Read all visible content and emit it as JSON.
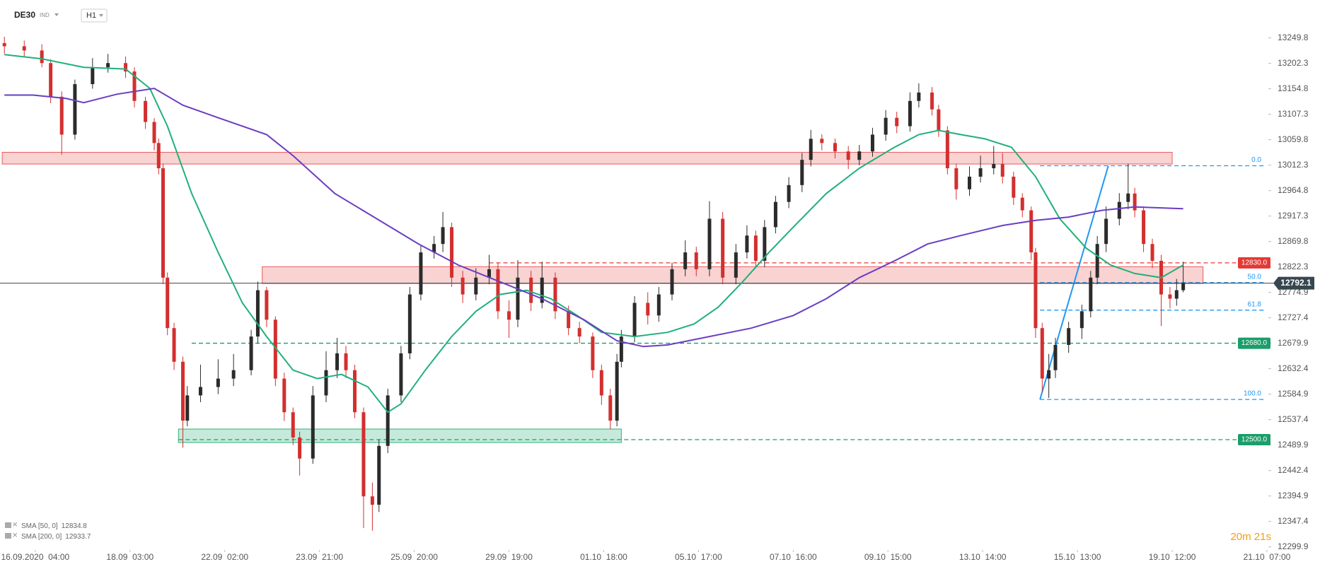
{
  "chart_data": {
    "type": "candlestick",
    "symbol": "DE30",
    "symbol_type": "IND",
    "timeframe": "H1",
    "countdown": "20m 21s",
    "up_color": "#2b2b2b",
    "down_color": "#d32f2f",
    "x": [
      2,
      11,
      19,
      23,
      28,
      34,
      42,
      49,
      57,
      61,
      66,
      70,
      72,
      74,
      76,
      79,
      83,
      85,
      91,
      99,
      106,
      114,
      117,
      121,
      125,
      129,
      133,
      136,
      142,
      148,
      153,
      157,
      161,
      165,
      169,
      172,
      176,
      182,
      186,
      191,
      197,
      201,
      205,
      210,
      216,
      222,
      226,
      231,
      235,
      241,
      246,
      252,
      258,
      263,
      269,
      273,
      277,
      280,
      282,
      288,
      294,
      299,
      305,
      311,
      316,
      322,
      328,
      334,
      339,
      343,
      347,
      352,
      358,
      364,
      368,
      373,
      379,
      385,
      390,
      396,
      402,
      407,
      413,
      417,
      423,
      426,
      430,
      434,
      440,
      445,
      451,
      455,
      460,
      464,
      468,
      470,
      473,
      476,
      479,
      485,
      491,
      495,
      498,
      502,
      508,
      512,
      515,
      519,
      523,
      527,
      531,
      534,
      537
    ],
    "open": [
      13240,
      13234.2,
      13226.3,
      13202.8,
      13140.0,
      13069.3,
      13163.5,
      13194.9,
      13202.8,
      13187.1,
      13132.1,
      13092.9,
      13053.6,
      13006.5,
      12802.4,
      12708.2,
      12645.4,
      12535.5,
      12582.6,
      12598.3,
      12614.0,
      12629.7,
      12692.5,
      12778.9,
      12723.9,
      12614.0,
      12551.2,
      12504.1,
      12464.8,
      12582.6,
      12629.7,
      12661.1,
      12629.7,
      12551.2,
      12394.2,
      12378.5,
      12488.4,
      12582.6,
      12661.1,
      12771.0,
      12849.5,
      12865.2,
      12896.6,
      12802.4,
      12771.0,
      12802.4,
      12818.1,
      12739.6,
      12723.9,
      12802.4,
      12755.3,
      12802.4,
      12739.6,
      12708.2,
      12692.5,
      12629.7,
      12582.6,
      12535.5,
      12645.4,
      12692.5,
      12755.3,
      12731.8,
      12771.0,
      12818.1,
      12849.5,
      12818.1,
      12912.3,
      12802.4,
      12849.5,
      12880.9,
      12833.8,
      12896.6,
      12943.7,
      12975.1,
      13022.2,
      13061.5,
      13053.6,
      13037.9,
      13022.2,
      13037.9,
      13069.3,
      13100.7,
      13085.0,
      13132.1,
      13147.8,
      13116.4,
      13077.2,
      13006.5,
      12967.3,
      12990.8,
      13006.5,
      13014.4,
      12990.8,
      12951.6,
      12928.0,
      12849.5,
      12708.2,
      12614.0,
      12629.7,
      12676.8,
      12708.2,
      12739.6,
      12802.4,
      12865.2,
      12912.3,
      12943.7,
      12959.4,
      12928.0,
      12865.2,
      12833.8,
      12771.0,
      12763.2,
      12778.9
    ],
    "high": [
      13252,
      13245,
      13238,
      13210,
      13150,
      13172,
      13212,
      13220,
      13215,
      13195,
      13140,
      13100,
      13062,
      13015,
      12812,
      12718,
      12655,
      12600,
      12640,
      12650,
      12660,
      12705,
      12795,
      12785,
      12730,
      12625,
      12560,
      12515,
      12600,
      12665,
      12690,
      12675,
      12640,
      12560,
      12420,
      12500,
      12595,
      12675,
      12785,
      12862,
      12880,
      12925,
      12905,
      12815,
      12820,
      12845,
      12830,
      12760,
      12835,
      12815,
      12832,
      12812,
      12750,
      12720,
      12700,
      12640,
      12595,
      12660,
      12705,
      12768,
      12775,
      12785,
      12830,
      12872,
      12860,
      12945,
      12925,
      12865,
      12900,
      12890,
      12910,
      12955,
      12990,
      13035,
      13078,
      13070,
      13062,
      13048,
      13050,
      13082,
      13115,
      13112,
      13148,
      13165,
      13158,
      13125,
      13085,
      13015,
      13010,
      13030,
      13048,
      13035,
      13000,
      12960,
      12935,
      12858,
      12718,
      12660,
      12690,
      12720,
      12752,
      12815,
      12880,
      12935,
      12960,
      13015,
      12970,
      12935,
      12875,
      12845,
      12785,
      12800,
      12832
    ],
    "low": [
      13220,
      13215,
      13195,
      13128,
      13032,
      13060,
      13155,
      13185,
      13175,
      13120,
      13080,
      13040,
      12995,
      12790,
      12695,
      12630,
      12485,
      12525,
      12570,
      12585,
      12600,
      12620,
      12680,
      12710,
      12600,
      12535,
      12490,
      12433,
      12455,
      12570,
      12615,
      12615,
      12540,
      12335,
      12330,
      12365,
      12475,
      12570,
      12650,
      12760,
      12838,
      12850,
      12785,
      12755,
      12760,
      12790,
      12725,
      12690,
      12710,
      12740,
      12745,
      12725,
      12695,
      12680,
      12615,
      12565,
      12520,
      12525,
      12635,
      12682,
      12715,
      12720,
      12760,
      12805,
      12805,
      12805,
      12790,
      12790,
      12838,
      12820,
      12822,
      12885,
      12932,
      12962,
      13010,
      13040,
      13025,
      13005,
      13012,
      13028,
      13058,
      13072,
      13075,
      13120,
      13105,
      13065,
      12995,
      12948,
      12955,
      12980,
      12995,
      12978,
      12938,
      12915,
      12835,
      12690,
      12590,
      12578,
      12615,
      12662,
      12688,
      12728,
      12790,
      12850,
      12900,
      12930,
      12915,
      12850,
      12820,
      12712,
      12745,
      12750,
      12775
    ],
    "close": [
      13234.2,
      13226.3,
      13202.8,
      13140.0,
      13069.3,
      13163.5,
      13194.9,
      13202.8,
      13187.1,
      13132.1,
      13092.9,
      13053.6,
      13006.5,
      12802.4,
      12708.2,
      12645.4,
      12535.5,
      12582.6,
      12598.3,
      12614.0,
      12629.7,
      12692.5,
      12778.9,
      12723.9,
      12614.0,
      12551.2,
      12504.1,
      12464.8,
      12582.6,
      12629.7,
      12661.1,
      12629.7,
      12551.2,
      12394.2,
      12378.5,
      12488.4,
      12582.6,
      12661.1,
      12771.0,
      12849.5,
      12865.2,
      12896.6,
      12802.4,
      12771.0,
      12802.4,
      12818.1,
      12739.6,
      12723.9,
      12802.4,
      12755.3,
      12802.4,
      12739.6,
      12708.2,
      12692.5,
      12629.7,
      12582.6,
      12535.5,
      12645.4,
      12692.5,
      12755.3,
      12731.8,
      12771.0,
      12818.1,
      12849.5,
      12818.1,
      12912.3,
      12802.4,
      12849.5,
      12880.9,
      12833.8,
      12896.6,
      12943.7,
      12975.1,
      13022.2,
      13061.5,
      13053.6,
      13037.9,
      13022.2,
      13037.9,
      13069.3,
      13100.7,
      13085.0,
      13132.1,
      13147.8,
      13116.4,
      13077.2,
      13006.5,
      12967.3,
      12990.8,
      13006.5,
      13014.4,
      12990.8,
      12951.6,
      12928.0,
      12849.5,
      12708.2,
      12614.0,
      12629.7,
      12676.8,
      12708.2,
      12739.6,
      12802.4,
      12865.2,
      12912.3,
      12943.7,
      12959.4,
      12928.0,
      12865.2,
      12833.8,
      12771.0,
      12763.2,
      12778.9,
      12792.1
    ],
    "series": [
      {
        "name": "SMA [50, 0]",
        "last": 12834.8,
        "color": "#21b07a",
        "x": [
          2,
          19,
          38,
          57,
          68,
          76,
          87,
          99,
          110,
          121,
          133,
          144,
          155,
          167,
          176,
          182,
          193,
          205,
          216,
          227,
          239,
          250,
          262,
          273,
          288,
          303,
          315,
          326,
          337,
          349,
          360,
          375,
          390,
          406,
          417,
          426,
          436,
          447,
          459,
          470,
          481,
          493,
          504,
          515,
          527,
          537
        ],
        "values": [
          13218.5,
          13210.6,
          13194.9,
          13191.8,
          13155.6,
          13085.0,
          12959.4,
          12849.5,
          12755.3,
          12692.5,
          12629.7,
          12614.0,
          12621.8,
          12598.3,
          12551.2,
          12566.9,
          12629.7,
          12692.5,
          12739.6,
          12771.0,
          12778.8,
          12763.1,
          12731.7,
          12700.3,
          12692.5,
          12700.3,
          12716.0,
          12747.4,
          12794.5,
          12849.5,
          12896.6,
          12959.4,
          13006.5,
          13045.7,
          13069.3,
          13077.1,
          13069.3,
          13061.4,
          13045.7,
          12990.8,
          12912.3,
          12857.3,
          12825.9,
          12810.2,
          12802.4,
          12825.9
        ]
      },
      {
        "name": "SMA [200, 0]",
        "last": 12933.7,
        "color": "#6a3ec2",
        "x": [
          2,
          15,
          30,
          38,
          53,
          70,
          83,
          99,
          121,
          133,
          152,
          171,
          190,
          208,
          227,
          246,
          265,
          280,
          292,
          303,
          322,
          341,
          360,
          375,
          390,
          406,
          421,
          436,
          455,
          470,
          485,
          500,
          515,
          537
        ],
        "values": [
          13143.1,
          13143.1,
          13136.8,
          13129.0,
          13144.7,
          13155.6,
          13124.2,
          13100.7,
          13069.3,
          13030.0,
          12959.4,
          12912.3,
          12865.2,
          12825.9,
          12794.5,
          12763.1,
          12723.9,
          12684.6,
          12673.7,
          12676.8,
          12692.5,
          12708.2,
          12731.7,
          12763.1,
          12802.4,
          12833.8,
          12865.2,
          12880.9,
          12899.7,
          12909.2,
          12915.4,
          12928.0,
          12934.3,
          12931.1
        ]
      }
    ],
    "zones": [
      {
        "from": 1,
        "to": 532,
        "low": 13014.4,
        "high": 13036.3,
        "color": "#e85c5c"
      },
      {
        "from": 119,
        "to": 546,
        "low": 12791.4,
        "high": 12822.8,
        "color": "#e85c5c"
      },
      {
        "from": 81,
        "to": 282,
        "low": 12494.7,
        "high": 12519.8,
        "color": "#2fb37c"
      }
    ],
    "levels": [
      {
        "value": 12830,
        "label": "12830.0",
        "from": 222,
        "color": "#e53935"
      },
      {
        "value": 12680,
        "label": "12680.0",
        "from": 87,
        "color": "#1a9e6a"
      },
      {
        "value": 12500,
        "label": "12500.0",
        "from": 81,
        "color": "#1a9e6a"
      }
    ],
    "last_price": {
      "value": 12792.1,
      "label": "12792.1",
      "color": "#37474f"
    },
    "fib": {
      "color": "#2196f3",
      "from": {
        "x": 472,
        "price": 12575.1
      },
      "to": {
        "x": 503,
        "price": 13011.2
      },
      "levels": [
        {
          "value": 0,
          "label": "0.0"
        },
        {
          "value": 50,
          "label": "50.0"
        },
        {
          "value": 61.8,
          "label": "61.8"
        },
        {
          "value": 100,
          "label": "100.0"
        }
      ]
    },
    "xlim": [
      0,
      575
    ],
    "xticks": [
      {
        "value": 16,
        "label": "16.09.2020  04:00"
      },
      {
        "value": 59,
        "label": "18.09  03:00"
      },
      {
        "value": 102,
        "label": "22.09  02:00"
      },
      {
        "value": 145,
        "label": "23.09  21:00"
      },
      {
        "value": 188,
        "label": "25.09  20:00"
      },
      {
        "value": 231,
        "label": "29.09  19:00"
      },
      {
        "value": 274,
        "label": "01.10  18:00"
      },
      {
        "value": 317,
        "label": "05.10  17:00"
      },
      {
        "value": 360,
        "label": "07.10  16:00"
      },
      {
        "value": 403,
        "label": "09.10  15:00"
      },
      {
        "value": 446,
        "label": "13.10  14:00"
      },
      {
        "value": 489,
        "label": "15.10  13:00"
      },
      {
        "value": 532,
        "label": "19.10  12:00"
      },
      {
        "value": 575,
        "label": "21.10  07:00"
      }
    ],
    "ylim": [
      12296.9,
      13320.5
    ],
    "yticks": [
      13249.8,
      13202.3,
      13154.8,
      13107.3,
      13059.8,
      13012.3,
      12964.8,
      12917.3,
      12869.8,
      12822.3,
      12774.9,
      12727.4,
      12679.9,
      12632.4,
      12584.9,
      12537.4,
      12489.9,
      12442.4,
      12394.9,
      12347.4,
      12299.9
    ],
    "grid": false
  }
}
